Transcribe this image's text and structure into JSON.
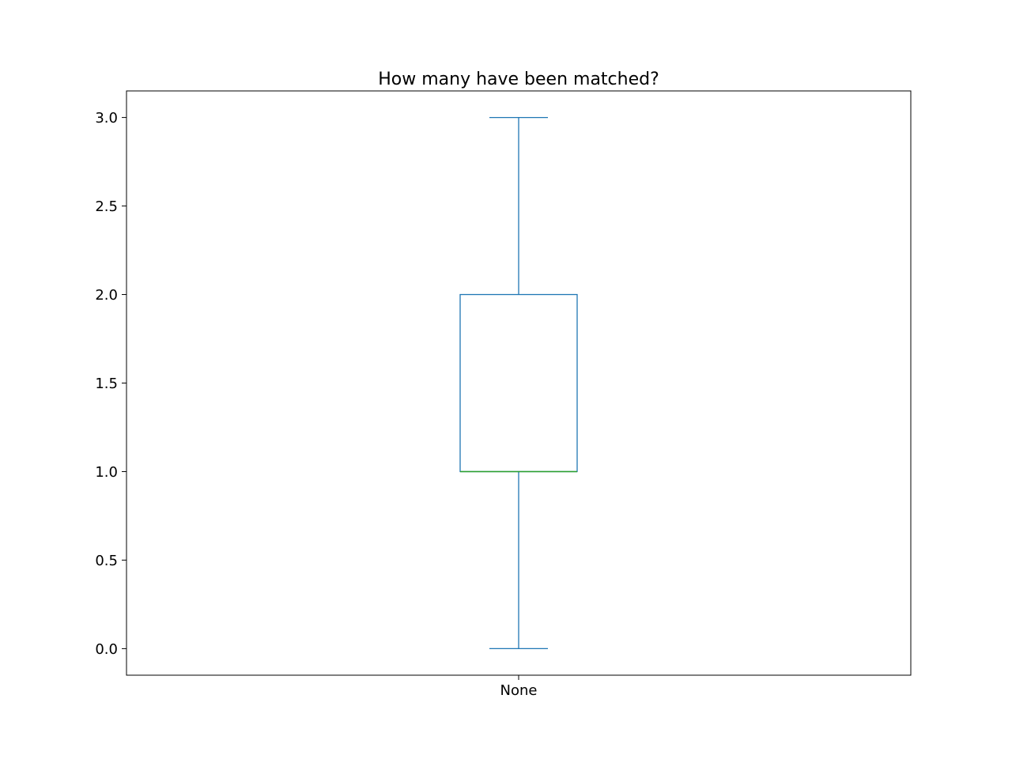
{
  "chart_data": {
    "type": "box",
    "title": "How many have been matched?",
    "xlabel": "",
    "ylabel": "",
    "categories": [
      "None"
    ],
    "boxes": [
      {
        "category": "None",
        "whisker_low": 0.0,
        "q1": 1.0,
        "median": 1.0,
        "q3": 2.0,
        "whisker_high": 3.0
      }
    ],
    "ylim": [
      -0.15,
      3.15
    ],
    "yticks": [
      {
        "value": 0.0,
        "label": "0.0"
      },
      {
        "value": 0.5,
        "label": "0.5"
      },
      {
        "value": 1.0,
        "label": "1.0"
      },
      {
        "value": 1.5,
        "label": "1.5"
      },
      {
        "value": 2.0,
        "label": "2.0"
      },
      {
        "value": 2.5,
        "label": "2.5"
      },
      {
        "value": 3.0,
        "label": "3.0"
      }
    ],
    "grid": false,
    "legend": "none",
    "colors": {
      "box": "#1f77b4",
      "median": "#2ca02c",
      "axes": "#000000"
    }
  }
}
